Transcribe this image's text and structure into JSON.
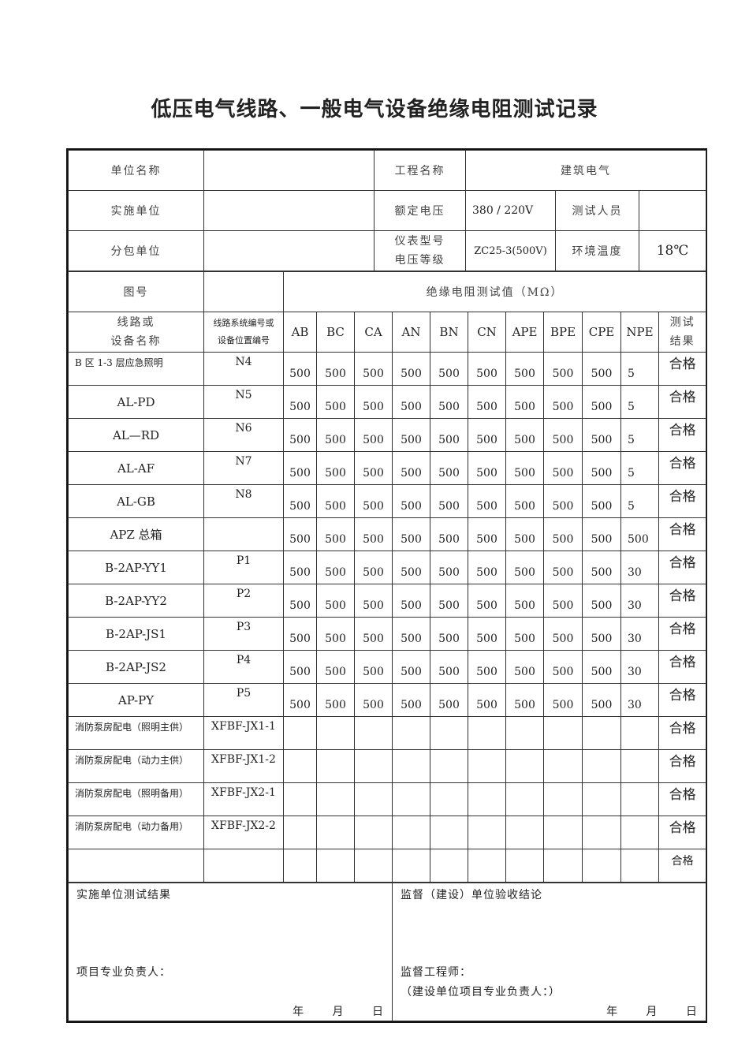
{
  "title": "低压电气线路、一般电气设备绝缘电阻测试记录",
  "header": {
    "unit_label": "单位名称",
    "unit_value": "",
    "project_label": "工程名称",
    "project_value": "建筑电气",
    "impl_label": "实施单位",
    "impl_value": "",
    "voltage_label": "额定电压",
    "voltage_value": "380 / 220V",
    "tester_label": "测试人员",
    "tester_value": "",
    "sub_label": "分包单位",
    "sub_value": "",
    "meter_label_1": "仪表型号",
    "meter_label_2": "电压等级",
    "meter_value": "ZC25-3(500V)",
    "temp_label": "环境温度",
    "temp_value": "18℃",
    "drawing_label": "图号",
    "drawing_value": "",
    "measure_label": "绝缘电阻测试值（MΩ）"
  },
  "columns": {
    "name_1": "线路或",
    "name_2": "设备名称",
    "code_1": "线路系统编号或",
    "code_2": "设备位置编号",
    "phases": [
      "AB",
      "BC",
      "CA",
      "AN",
      "BN",
      "CN",
      "APE",
      "BPE",
      "CPE",
      "NPE"
    ],
    "result_1": "测试",
    "result_2": "结果"
  },
  "rows": [
    {
      "name": "B 区 1-3 层应急照明",
      "code": "N4",
      "values": [
        "500",
        "500",
        "500",
        "500",
        "500",
        "500",
        "500",
        "500",
        "500",
        "5"
      ],
      "result": "合格"
    },
    {
      "name": "AL-PD",
      "code": "N5",
      "values": [
        "500",
        "500",
        "500",
        "500",
        "500",
        "500",
        "500",
        "500",
        "500",
        "5"
      ],
      "result": "合格"
    },
    {
      "name": "AL—RD",
      "code": "N6",
      "values": [
        "500",
        "500",
        "500",
        "500",
        "500",
        "500",
        "500",
        "500",
        "500",
        "5"
      ],
      "result": "合格"
    },
    {
      "name": "AL-AF",
      "code": "N7",
      "values": [
        "500",
        "500",
        "500",
        "500",
        "500",
        "500",
        "500",
        "500",
        "500",
        "5"
      ],
      "result": "合格"
    },
    {
      "name": "AL-GB",
      "code": "N8",
      "values": [
        "500",
        "500",
        "500",
        "500",
        "500",
        "500",
        "500",
        "500",
        "500",
        "5"
      ],
      "result": "合格"
    },
    {
      "name": "APZ 总箱",
      "code": "",
      "values": [
        "500",
        "500",
        "500",
        "500",
        "500",
        "500",
        "500",
        "500",
        "500",
        "500"
      ],
      "result": "合格"
    },
    {
      "name": "B-2AP-YY1",
      "code": "P1",
      "values": [
        "500",
        "500",
        "500",
        "500",
        "500",
        "500",
        "500",
        "500",
        "500",
        "30"
      ],
      "result": "合格"
    },
    {
      "name": "B-2AP-YY2",
      "code": "P2",
      "values": [
        "500",
        "500",
        "500",
        "500",
        "500",
        "500",
        "500",
        "500",
        "500",
        "30"
      ],
      "result": "合格"
    },
    {
      "name": "B-2AP-JS1",
      "code": "P3",
      "values": [
        "500",
        "500",
        "500",
        "500",
        "500",
        "500",
        "500",
        "500",
        "500",
        "30"
      ],
      "result": "合格"
    },
    {
      "name": "B-2AP-JS2",
      "code": "P4",
      "values": [
        "500",
        "500",
        "500",
        "500",
        "500",
        "500",
        "500",
        "500",
        "500",
        "30"
      ],
      "result": "合格"
    },
    {
      "name": "AP-PY",
      "code": "P5",
      "values": [
        "500",
        "500",
        "500",
        "500",
        "500",
        "500",
        "500",
        "500",
        "500",
        "30"
      ],
      "result": "合格"
    },
    {
      "name": "消防泵房配电（照明主供）",
      "code": "XFBF-JX1-1",
      "values": [
        "",
        "",
        "",
        "",
        "",
        "",
        "",
        "",
        "",
        ""
      ],
      "result": "合格"
    },
    {
      "name": "消防泵房配电（动力主供）",
      "code": "XFBF-JX1-2",
      "values": [
        "",
        "",
        "",
        "",
        "",
        "",
        "",
        "",
        "",
        ""
      ],
      "result": "合格"
    },
    {
      "name": "消防泵房配电（照明备用）",
      "code": "XFBF-JX2-1",
      "values": [
        "",
        "",
        "",
        "",
        "",
        "",
        "",
        "",
        "",
        ""
      ],
      "result": "合格"
    },
    {
      "name": "消防泵房配电（动力备用）",
      "code": "XFBF-JX2-2",
      "values": [
        "",
        "",
        "",
        "",
        "",
        "",
        "",
        "",
        "",
        ""
      ],
      "result": "合格"
    },
    {
      "name": "",
      "code": "",
      "values": [
        "",
        "",
        "",
        "",
        "",
        "",
        "",
        "",
        "",
        ""
      ],
      "result": "合格"
    }
  ],
  "footer": {
    "left_title": "实施单位测试结果",
    "left_sign": "项目专业负责人：",
    "left_date": "年 月 日",
    "right_title": "监督（建设）单位验收结论",
    "right_sign": "监督工程师：",
    "right_sign2": "（建设单位项目专业负责人：）",
    "right_date": "年 月 日"
  }
}
